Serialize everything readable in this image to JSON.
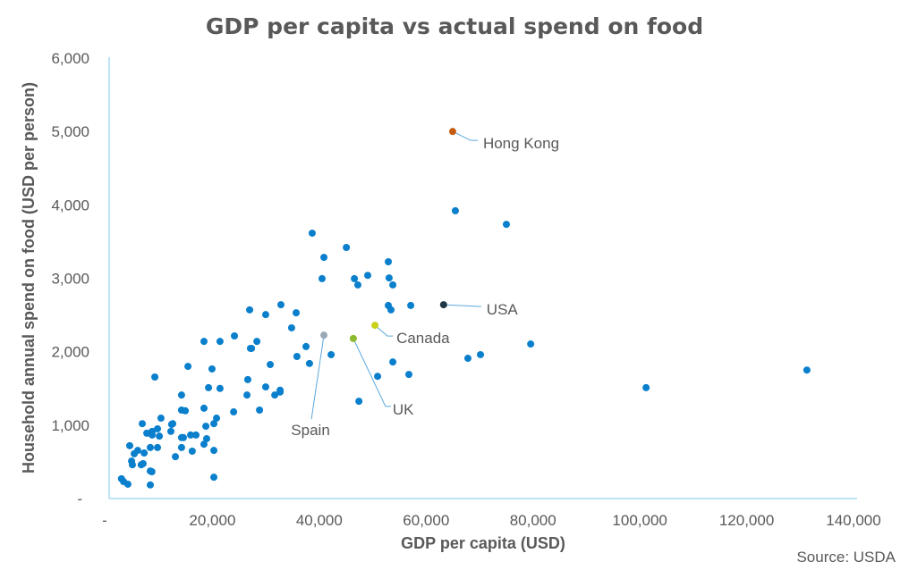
{
  "chart_data": {
    "type": "scatter",
    "title": "GDP per capita vs actual spend on food",
    "xlabel": "GDP per capita (USD)",
    "ylabel": "Household annual spend on food (USD per person)",
    "source": "Source: USDA",
    "xlim": [
      0,
      140000
    ],
    "ylim": [
      0,
      6000
    ],
    "x_ticks": [
      0,
      20000,
      40000,
      60000,
      80000,
      100000,
      120000,
      140000
    ],
    "x_tick_labels": [
      "-",
      "20,000",
      "40,000",
      "60,000",
      "80,000",
      "100,000",
      "120,000",
      "140,000"
    ],
    "y_ticks": [
      0,
      1000,
      2000,
      3000,
      4000,
      5000,
      6000
    ],
    "y_tick_labels": [
      "-",
      "1,000",
      "2,000",
      "3,000",
      "4,000",
      "5,000",
      "6,000"
    ],
    "grid": false,
    "legend": "none",
    "point_color": "#0A7FCC",
    "series": [
      {
        "name": "Countries",
        "points": [
          [
            2300,
            270
          ],
          [
            2700,
            230
          ],
          [
            3500,
            195
          ],
          [
            7700,
            185
          ],
          [
            7700,
            375
          ],
          [
            8000,
            365
          ],
          [
            4200,
            510
          ],
          [
            4350,
            460
          ],
          [
            6000,
            460
          ],
          [
            6350,
            475
          ],
          [
            3850,
            720
          ],
          [
            5350,
            655
          ],
          [
            4700,
            610
          ],
          [
            6550,
            620
          ],
          [
            7700,
            695
          ],
          [
            9050,
            695
          ],
          [
            7050,
            890
          ],
          [
            8050,
            915
          ],
          [
            9050,
            950
          ],
          [
            8050,
            865
          ],
          [
            9400,
            850
          ],
          [
            9700,
            1095
          ],
          [
            6200,
            1020
          ],
          [
            11700,
            1010
          ],
          [
            11550,
            915
          ],
          [
            12400,
            570
          ],
          [
            13550,
            695
          ],
          [
            15550,
            645
          ],
          [
            13550,
            830
          ],
          [
            13900,
            830
          ],
          [
            15250,
            865
          ],
          [
            16250,
            865
          ],
          [
            18250,
            815
          ],
          [
            17750,
            740
          ],
          [
            19600,
            655
          ],
          [
            19600,
            290
          ],
          [
            11900,
            1020
          ],
          [
            18100,
            985
          ],
          [
            19600,
            1020
          ],
          [
            20100,
            1095
          ],
          [
            13550,
            1205
          ],
          [
            14250,
            1195
          ],
          [
            17750,
            1230
          ],
          [
            23300,
            1180
          ],
          [
            13550,
            1410
          ],
          [
            25800,
            1410
          ],
          [
            18600,
            1510
          ],
          [
            20750,
            1500
          ],
          [
            25950,
            1620
          ],
          [
            8550,
            1655
          ],
          [
            14750,
            1800
          ],
          [
            19250,
            1765
          ],
          [
            26650,
            2045
          ],
          [
            27650,
            2140
          ],
          [
            23450,
            2215
          ],
          [
            17750,
            2140
          ],
          [
            20750,
            2140
          ],
          [
            26450,
            2045
          ],
          [
            30150,
            1825
          ],
          [
            26300,
            2570
          ],
          [
            29300,
            2505
          ],
          [
            32150,
            2640
          ],
          [
            28150,
            1205
          ],
          [
            29300,
            1520
          ],
          [
            31000,
            1410
          ],
          [
            32000,
            1475
          ],
          [
            32000,
            1450
          ],
          [
            36850,
            2070
          ],
          [
            35150,
            1935
          ],
          [
            37500,
            1840
          ],
          [
            41550,
            1960
          ],
          [
            35000,
            2530
          ],
          [
            34150,
            2325
          ],
          [
            38000,
            3615
          ],
          [
            44400,
            3420
          ],
          [
            40200,
            3285
          ],
          [
            52250,
            3225
          ],
          [
            39850,
            2995
          ],
          [
            45900,
            2995
          ],
          [
            46550,
            2910
          ],
          [
            48400,
            3040
          ],
          [
            52400,
            3005
          ],
          [
            53100,
            2910
          ],
          [
            52250,
            2630
          ],
          [
            52750,
            2570
          ],
          [
            56450,
            2630
          ],
          [
            46750,
            1325
          ],
          [
            50250,
            1665
          ],
          [
            53100,
            1860
          ],
          [
            56100,
            1690
          ],
          [
            64800,
            3920
          ],
          [
            74350,
            3735
          ],
          [
            67150,
            1910
          ],
          [
            69500,
            1960
          ],
          [
            78900,
            2105
          ],
          [
            100500,
            1510
          ],
          [
            130600,
            1750
          ]
        ]
      }
    ],
    "highlighted": [
      {
        "label": "Hong Kong",
        "x": 64300,
        "y": 5000,
        "color": "#C55A11"
      },
      {
        "label": "USA",
        "x": 62600,
        "y": 2640,
        "color": "#203846"
      },
      {
        "label": "Canada",
        "x": 49750,
        "y": 2360,
        "color": "#C9D11A"
      },
      {
        "label": "UK",
        "x": 45700,
        "y": 2180,
        "color": "#8DB92E"
      },
      {
        "label": "Spain",
        "x": 40200,
        "y": 2225,
        "color": "#98A9B5"
      }
    ],
    "leader_line_color": "#5BA8DC",
    "axis_color": "#BDE3F7"
  }
}
